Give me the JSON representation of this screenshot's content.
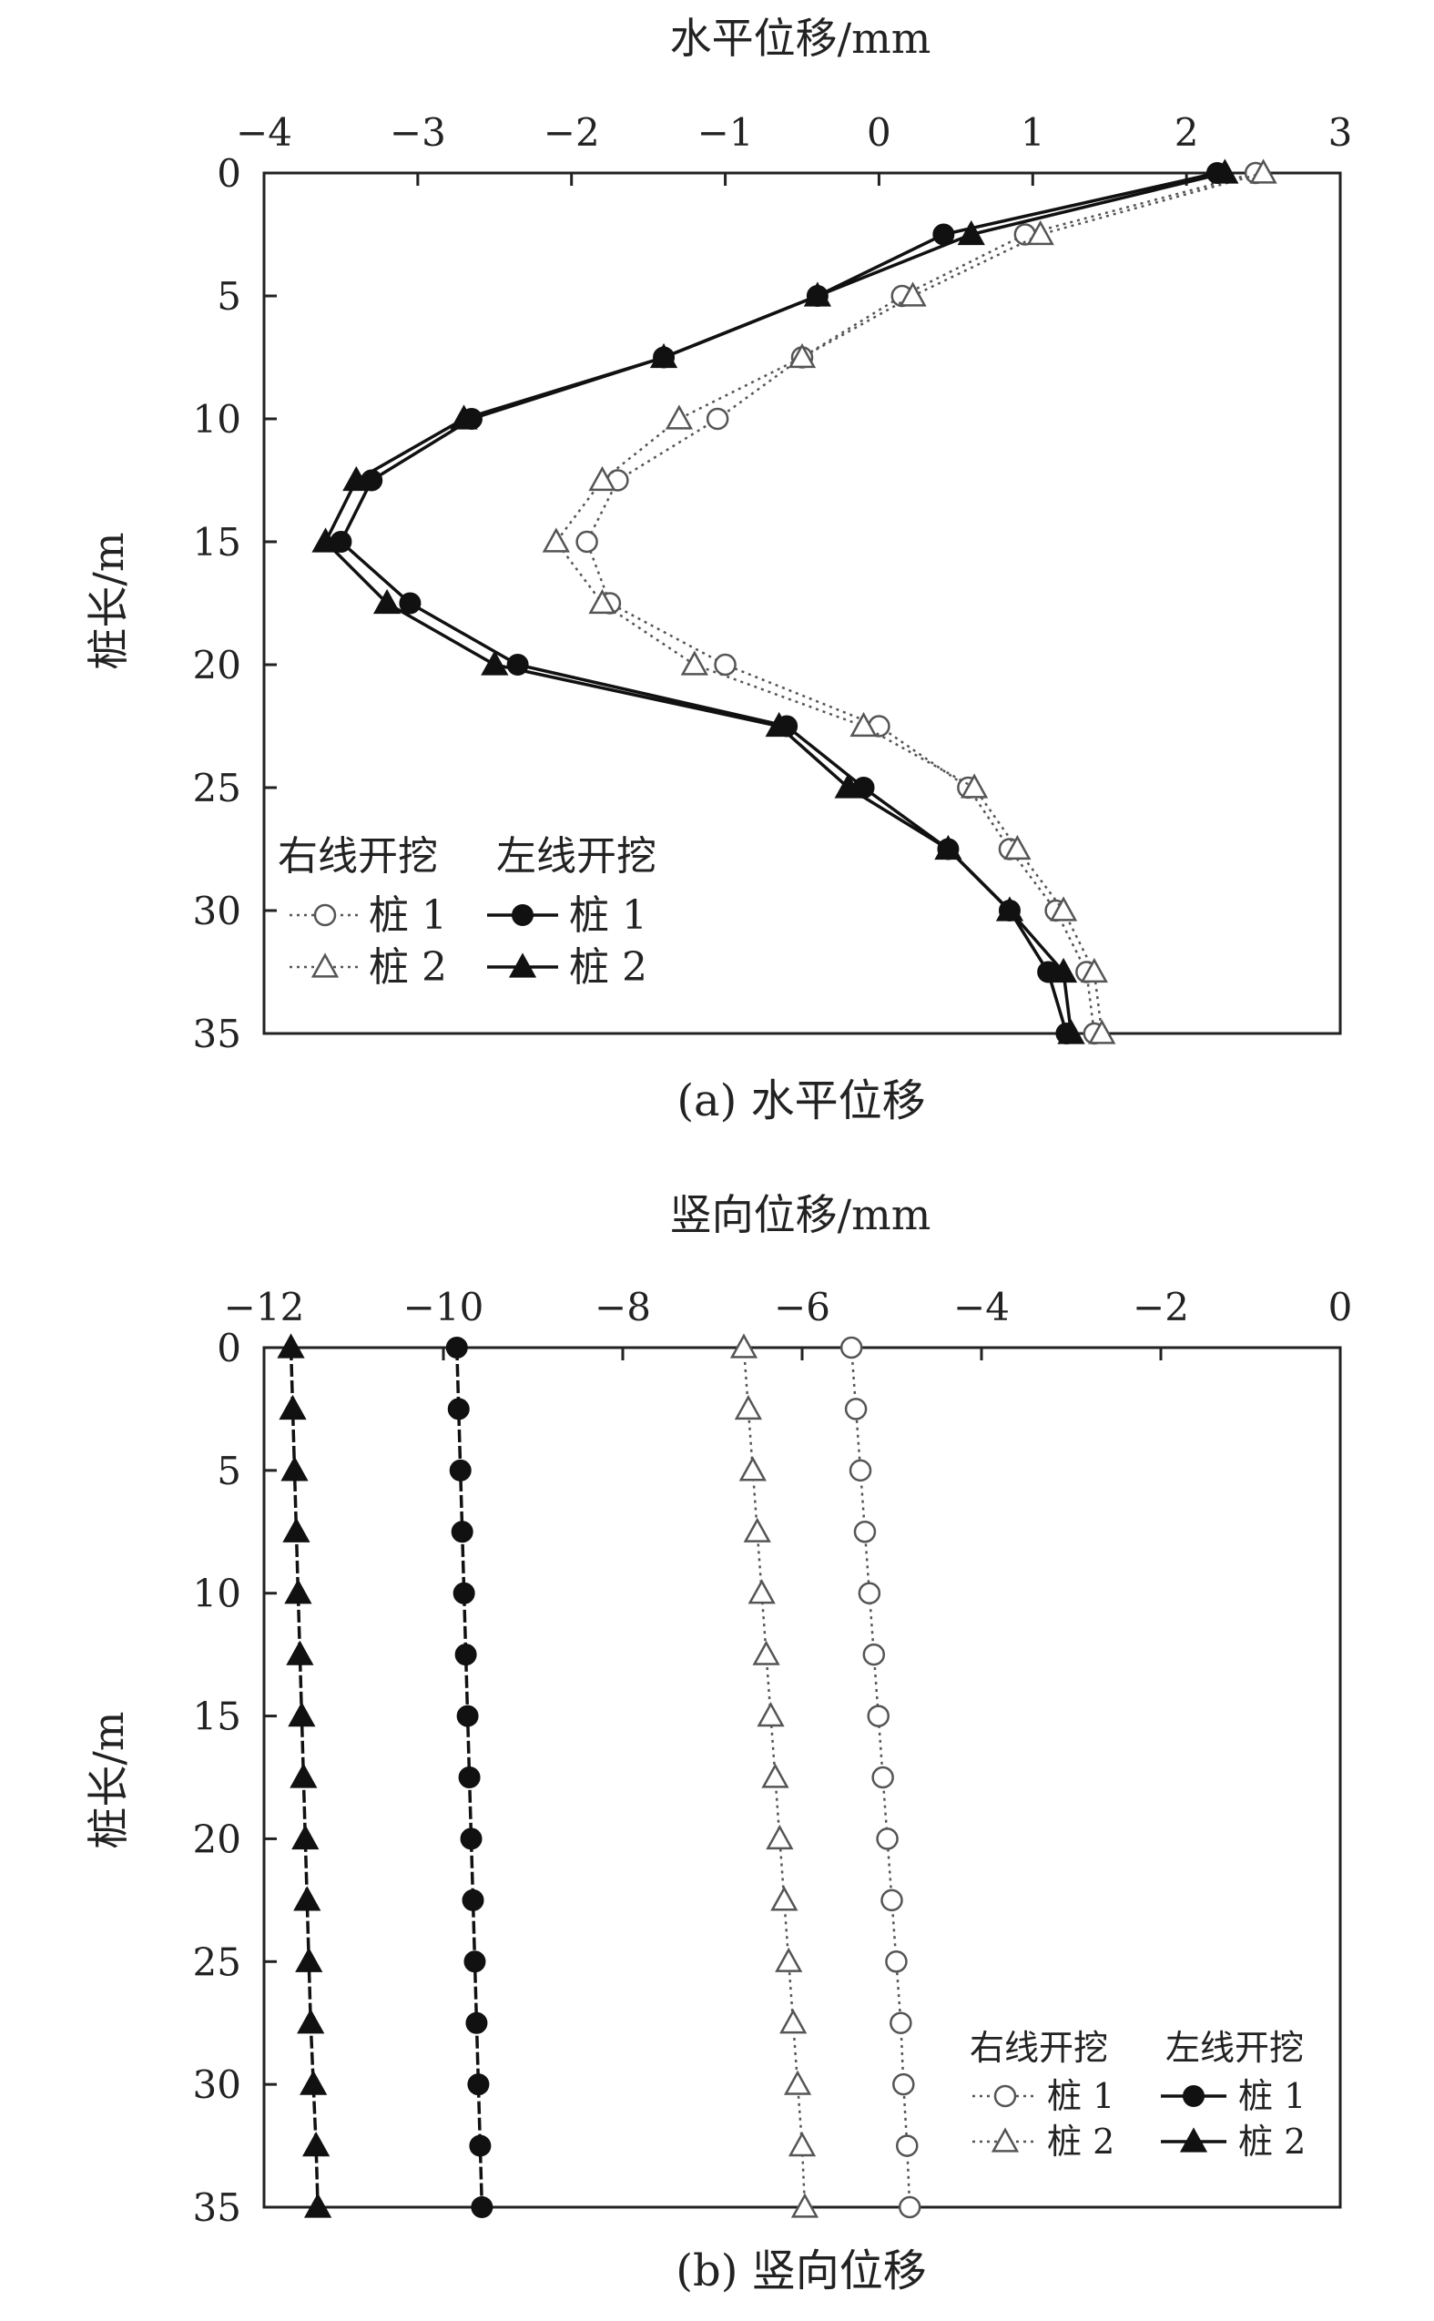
{
  "chart_data": [
    {
      "type": "line",
      "title": "",
      "caption": "(a) 水平位移",
      "xlabel": "水平位移/mm",
      "ylabel": "桩长/m",
      "xlim": [
        -4,
        3
      ],
      "ylim": [
        0,
        35
      ],
      "y_inverted": true,
      "x_axis_position": "top",
      "xticks": [
        "−4",
        "−3",
        "−2",
        "−1",
        "0",
        "1",
        "2",
        "3"
      ],
      "yticks": [
        "0",
        "5",
        "10",
        "15",
        "20",
        "25",
        "30",
        "35"
      ],
      "legend": {
        "placement": "bottom-left",
        "group_right": "右线开挖",
        "group_left": "左线开挖",
        "entries": [
          {
            "group": "右线开挖",
            "label": "桩 1",
            "marker": "open-circle",
            "line": "dotted"
          },
          {
            "group": "右线开挖",
            "label": "桩 2",
            "marker": "open-triangle",
            "line": "dotted"
          },
          {
            "group": "左线开挖",
            "label": "桩 1",
            "marker": "filled-circle",
            "line": "solid"
          },
          {
            "group": "左线开挖",
            "label": "桩 2",
            "marker": "filled-triangle",
            "line": "solid"
          }
        ]
      },
      "y": [
        0,
        2.5,
        5,
        7.5,
        10,
        12.5,
        15,
        17.5,
        20,
        22.5,
        25,
        27.5,
        30,
        32.5,
        35
      ],
      "series": [
        {
          "group": "右线开挖",
          "name": "桩 1",
          "marker": "open-circle",
          "line": "dotted",
          "color": "#555555",
          "x": [
            2.45,
            0.95,
            0.15,
            -0.5,
            -1.05,
            -1.7,
            -1.9,
            -1.75,
            -1.0,
            0.0,
            0.58,
            0.85,
            1.15,
            1.35,
            1.4
          ]
        },
        {
          "group": "右线开挖",
          "name": "桩 2",
          "marker": "open-triangle",
          "line": "dotted",
          "color": "#555555",
          "x": [
            2.5,
            1.05,
            0.22,
            -0.5,
            -1.3,
            -1.8,
            -2.1,
            -1.8,
            -1.2,
            -0.1,
            0.62,
            0.9,
            1.2,
            1.4,
            1.45
          ]
        },
        {
          "group": "左线开挖",
          "name": "桩 1",
          "marker": "filled-circle",
          "line": "solid",
          "color": "#111111",
          "x": [
            2.2,
            0.42,
            -0.4,
            -1.4,
            -2.65,
            -3.3,
            -3.5,
            -3.05,
            -2.35,
            -0.6,
            -0.1,
            0.45,
            0.85,
            1.1,
            1.22
          ]
        },
        {
          "group": "左线开挖",
          "name": "桩 2",
          "marker": "filled-triangle",
          "line": "solid",
          "color": "#111111",
          "x": [
            2.25,
            0.6,
            -0.4,
            -1.4,
            -2.7,
            -3.4,
            -3.6,
            -3.2,
            -2.5,
            -0.65,
            -0.2,
            0.45,
            0.85,
            1.2,
            1.25
          ]
        }
      ]
    },
    {
      "type": "line",
      "title": "",
      "caption": "(b) 竖向位移",
      "xlabel": "竖向位移/mm",
      "ylabel": "桩长/m",
      "xlim": [
        -12,
        0
      ],
      "ylim": [
        0,
        35
      ],
      "y_inverted": true,
      "x_axis_position": "top",
      "xticks": [
        "−12",
        "−10",
        "−8",
        "−6",
        "−4",
        "−2",
        "0"
      ],
      "yticks": [
        "0",
        "5",
        "10",
        "15",
        "20",
        "25",
        "30",
        "35"
      ],
      "legend": {
        "placement": "bottom-right",
        "group_right": "右线开挖",
        "group_left": "左线开挖",
        "entries": [
          {
            "group": "右线开挖",
            "label": "桩 1",
            "marker": "open-circle",
            "line": "dotted"
          },
          {
            "group": "右线开挖",
            "label": "桩 2",
            "marker": "open-triangle",
            "line": "dotted"
          },
          {
            "group": "左线开挖",
            "label": "桩 1",
            "marker": "filled-circle",
            "line": "solid"
          },
          {
            "group": "左线开挖",
            "label": "桩 2",
            "marker": "filled-triangle",
            "line": "solid"
          }
        ]
      },
      "y": [
        0,
        2.5,
        5,
        7.5,
        10,
        12.5,
        15,
        17.5,
        20,
        22.5,
        25,
        27.5,
        30,
        32.5,
        35
      ],
      "series": [
        {
          "group": "右线开挖",
          "name": "桩 1",
          "marker": "open-circle",
          "line": "dotted",
          "color": "#555555",
          "x": [
            -5.45,
            -5.4,
            -5.35,
            -5.3,
            -5.25,
            -5.2,
            -5.15,
            -5.1,
            -5.05,
            -5.0,
            -4.95,
            -4.9,
            -4.87,
            -4.83,
            -4.8
          ]
        },
        {
          "group": "右线开挖",
          "name": "桩 2",
          "marker": "open-triangle",
          "line": "dotted",
          "color": "#555555",
          "x": [
            -6.65,
            -6.6,
            -6.55,
            -6.5,
            -6.45,
            -6.4,
            -6.35,
            -6.3,
            -6.25,
            -6.2,
            -6.15,
            -6.1,
            -6.05,
            -6.0,
            -5.97
          ]
        },
        {
          "group": "左线开挖",
          "name": "桩 1",
          "marker": "filled-circle",
          "line": "solid",
          "color": "#111111",
          "x": [
            -9.85,
            -9.83,
            -9.81,
            -9.79,
            -9.77,
            -9.75,
            -9.73,
            -9.71,
            -9.69,
            -9.67,
            -9.65,
            -9.63,
            -9.61,
            -9.59,
            -9.57
          ]
        },
        {
          "group": "左线开挖",
          "name": "桩 2",
          "marker": "filled-triangle",
          "line": "solid",
          "color": "#111111",
          "x": [
            -11.7,
            -11.68,
            -11.66,
            -11.64,
            -11.62,
            -11.6,
            -11.58,
            -11.56,
            -11.54,
            -11.52,
            -11.5,
            -11.48,
            -11.45,
            -11.42,
            -11.4
          ]
        }
      ]
    }
  ]
}
